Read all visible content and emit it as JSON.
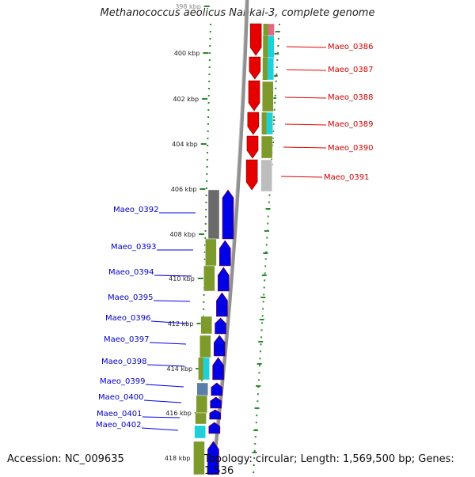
{
  "title": "Methanococcus aeolicus Nankai-3, complete genome",
  "footer": {
    "accession": "Accession: NC_009635",
    "topology": "Topology: circular; Length: 1,569,500 bp; Genes: 1,536"
  },
  "ticks": [
    "398 kbp",
    "400 kbp",
    "402 kbp",
    "404 kbp",
    "406 kbp",
    "408 kbp",
    "410 kbp",
    "412 kbp",
    "414 kbp",
    "416 kbp",
    "418 kbp"
  ],
  "genes_forward": [
    "Maeo_0386",
    "Maeo_0387",
    "Maeo_0388",
    "Maeo_0389",
    "Maeo_0390",
    "Maeo_0391"
  ],
  "genes_reverse": [
    "Maeo_0392",
    "Maeo_0393",
    "Maeo_0394",
    "Maeo_0395",
    "Maeo_0396",
    "Maeo_0397",
    "Maeo_0398",
    "Maeo_0399",
    "Maeo_0400",
    "Maeo_0401",
    "Maeo_0402"
  ],
  "colors": {
    "forward_strand": "#e60000",
    "reverse_strand": "#0000e6",
    "backbone": "#909090",
    "tick": "#2a8a2a",
    "cog_olive": "#7e9a2c",
    "cog_cyan": "#1ed0d8",
    "cog_grey": "#bdbdbd",
    "cog_dark": "#6b6b6b",
    "cog_steel": "#5a7fa8",
    "cog_pink": "#e06a80"
  }
}
